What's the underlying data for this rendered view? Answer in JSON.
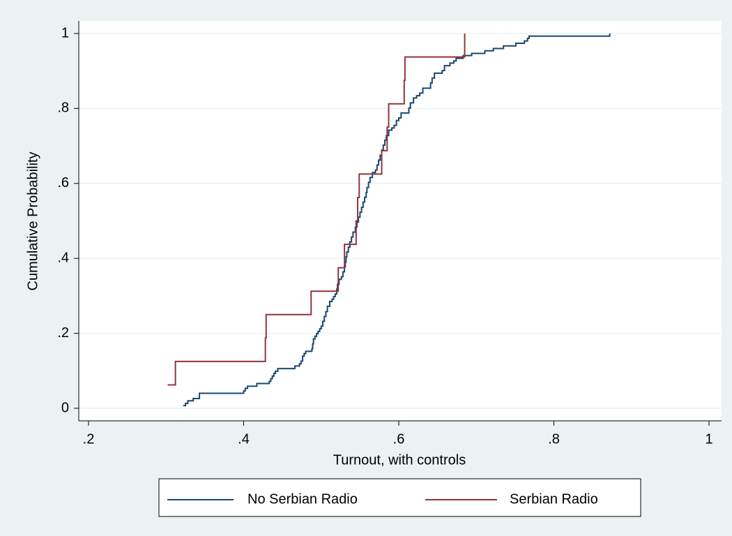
{
  "chart_data": {
    "type": "step",
    "x_label": "Turnout, with controls",
    "y_label": "Cumulative Probability",
    "xlim": [
      0.2,
      1
    ],
    "ylim": [
      0,
      1
    ],
    "xticks": [
      {
        "value": 0.2,
        "label": ".2"
      },
      {
        "value": 0.4,
        "label": ".4"
      },
      {
        "value": 0.6,
        "label": ".6"
      },
      {
        "value": 0.8,
        "label": ".8"
      },
      1
    ],
    "yticks": [
      0,
      {
        "value": 0.2,
        "label": ".2"
      },
      {
        "value": 0.4,
        "label": ".4"
      },
      {
        "value": 0.6,
        "label": ".6"
      },
      {
        "value": 0.8,
        "label": ".8"
      },
      1
    ],
    "grid": true,
    "legend": "bottom",
    "series": [
      {
        "name": "No Serbian Radio",
        "color": "#1a476f",
        "x": [
          0.322,
          0.325,
          0.328,
          0.335,
          0.343,
          0.4,
          0.402,
          0.405,
          0.417,
          0.433,
          0.435,
          0.437,
          0.439,
          0.441,
          0.444,
          0.466,
          0.472,
          0.474,
          0.476,
          0.478,
          0.48,
          0.488,
          0.489,
          0.49,
          0.492,
          0.494,
          0.496,
          0.498,
          0.5,
          0.502,
          0.504,
          0.506,
          0.508,
          0.511,
          0.514,
          0.516,
          0.518,
          0.52,
          0.521,
          0.523,
          0.526,
          0.528,
          0.53,
          0.531,
          0.532,
          0.533,
          0.535,
          0.537,
          0.539,
          0.541,
          0.544,
          0.546,
          0.548,
          0.55,
          0.552,
          0.554,
          0.556,
          0.558,
          0.559,
          0.561,
          0.563,
          0.566,
          0.57,
          0.572,
          0.574,
          0.576,
          0.578,
          0.58,
          0.582,
          0.584,
          0.587,
          0.591,
          0.594,
          0.597,
          0.6,
          0.603,
          0.613,
          0.615,
          0.619,
          0.623,
          0.627,
          0.631,
          0.641,
          0.643,
          0.646,
          0.656,
          0.659,
          0.666,
          0.671,
          0.674,
          0.683,
          0.694,
          0.711,
          0.722,
          0.735,
          0.751,
          0.762,
          0.766,
          0.768,
          0.872
        ],
        "values": [
          0.007,
          0.013,
          0.02,
          0.026,
          0.04,
          0.046,
          0.053,
          0.059,
          0.066,
          0.072,
          0.079,
          0.086,
          0.093,
          0.099,
          0.106,
          0.113,
          0.119,
          0.126,
          0.139,
          0.146,
          0.152,
          0.159,
          0.172,
          0.185,
          0.192,
          0.199,
          0.205,
          0.212,
          0.219,
          0.232,
          0.245,
          0.258,
          0.272,
          0.285,
          0.291,
          0.298,
          0.305,
          0.318,
          0.331,
          0.344,
          0.351,
          0.364,
          0.377,
          0.39,
          0.404,
          0.417,
          0.43,
          0.444,
          0.457,
          0.47,
          0.483,
          0.497,
          0.51,
          0.523,
          0.536,
          0.55,
          0.563,
          0.576,
          0.589,
          0.603,
          0.616,
          0.629,
          0.636,
          0.649,
          0.662,
          0.675,
          0.689,
          0.702,
          0.715,
          0.728,
          0.742,
          0.748,
          0.755,
          0.768,
          0.775,
          0.788,
          0.801,
          0.815,
          0.828,
          0.834,
          0.841,
          0.854,
          0.868,
          0.881,
          0.894,
          0.901,
          0.914,
          0.921,
          0.927,
          0.934,
          0.941,
          0.947,
          0.954,
          0.96,
          0.967,
          0.974,
          0.98,
          0.987,
          0.993,
          1.0
        ]
      },
      {
        "name": "Serbian Radio",
        "color": "#90353b",
        "x": [
          0.302,
          0.312,
          0.428,
          0.429,
          0.487,
          0.522,
          0.53,
          0.545,
          0.547,
          0.549,
          0.578,
          0.585,
          0.587,
          0.607,
          0.608,
          0.685
        ],
        "values": [
          0.0625,
          0.125,
          0.1875,
          0.25,
          0.3125,
          0.375,
          0.4375,
          0.5,
          0.5625,
          0.625,
          0.6875,
          0.75,
          0.8125,
          0.875,
          0.9375,
          1.0
        ]
      }
    ]
  }
}
